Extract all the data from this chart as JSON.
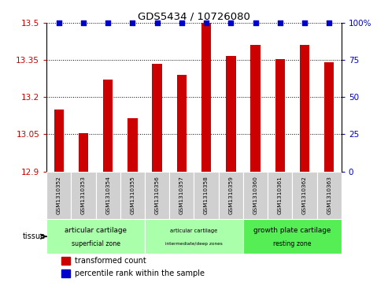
{
  "title": "GDS5434 / 10726080",
  "samples": [
    "GSM1310352",
    "GSM1310353",
    "GSM1310354",
    "GSM1310355",
    "GSM1310356",
    "GSM1310357",
    "GSM1310358",
    "GSM1310359",
    "GSM1310360",
    "GSM1310361",
    "GSM1310362",
    "GSM1310363"
  ],
  "transformed_counts": [
    13.15,
    13.055,
    13.27,
    13.115,
    13.335,
    13.29,
    13.5,
    13.365,
    13.41,
    13.355,
    13.41,
    13.34
  ],
  "percentile_ranks": [
    100,
    100,
    100,
    100,
    100,
    100,
    100,
    100,
    100,
    100,
    100,
    100
  ],
  "ylim_left": [
    12.9,
    13.5
  ],
  "ylim_right": [
    0,
    100
  ],
  "yticks_left": [
    12.9,
    13.05,
    13.2,
    13.35,
    13.5
  ],
  "yticks_right": [
    0,
    25,
    50,
    75,
    100
  ],
  "bar_color": "#cc0000",
  "scatter_color": "#0000cc",
  "tissue_groups": [
    {
      "label_line1": "articular cartilage",
      "label_line2": "superficial zone",
      "start": 0,
      "end": 4,
      "color": "#aaffaa",
      "fontsize_scale": 1.0
    },
    {
      "label_line1": "articular cartilage",
      "label_line2": "intermediate/deep zones",
      "start": 4,
      "end": 8,
      "color": "#aaffaa",
      "fontsize_scale": 0.75
    },
    {
      "label_line1": "growth plate cartilage",
      "label_line2": "resting zone",
      "start": 8,
      "end": 12,
      "color": "#55ee55",
      "fontsize_scale": 1.0
    }
  ],
  "sample_box_color": "#d0d0d0",
  "bar_width": 0.4,
  "scatter_size": 20,
  "legend_red_label": "transformed count",
  "legend_blue_label": "percentile rank within the sample",
  "tissue_label": "tissue"
}
